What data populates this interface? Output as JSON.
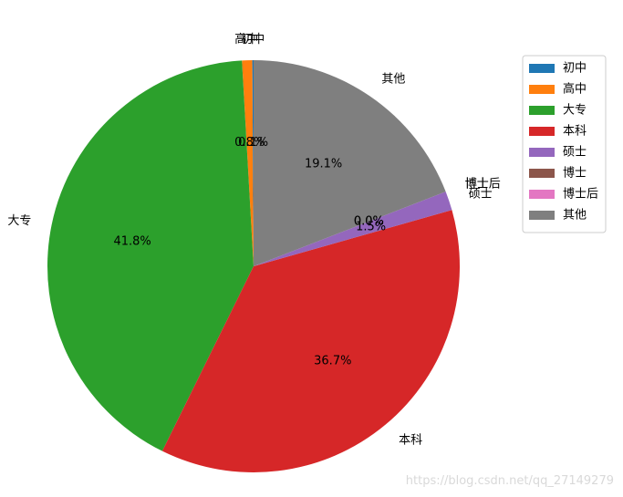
{
  "chart_data": {
    "type": "pie",
    "categories": [
      "初中",
      "高中",
      "大专",
      "本科",
      "硕士",
      "博士",
      "博士后",
      "其他"
    ],
    "values": [
      0.1,
      0.8,
      41.8,
      36.7,
      1.5,
      0.0,
      0.0,
      19.1
    ],
    "pct_labels": [
      "0.1%",
      "0.8%",
      "41.8%",
      "36.7%",
      "1.5%",
      "0.0%",
      "0.0%",
      "19.1%"
    ],
    "colors": [
      "#1f77b4",
      "#ff7f0e",
      "#2ca02c",
      "#d62728",
      "#9467bd",
      "#8c564b",
      "#e377c2",
      "#7f7f7f"
    ],
    "start_angle_deg": 90,
    "direction": "counterclockwise",
    "legend_placement": "top-right"
  },
  "watermark": "https://blog.csdn.net/qq_27149279"
}
